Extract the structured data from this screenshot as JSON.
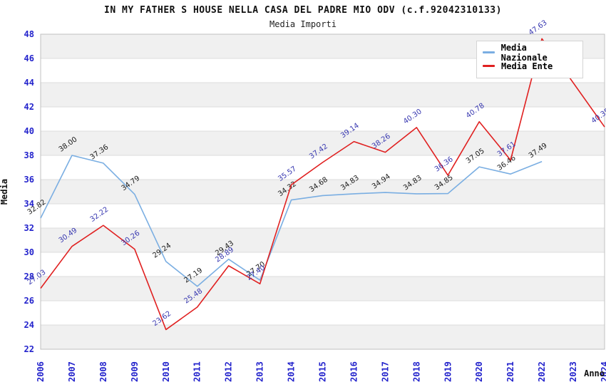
{
  "header": {
    "title": "IN MY FATHER S HOUSE NELLA CASA DEL PADRE MIO ODV (c.f.92042310133)",
    "subtitle": "Media Importi"
  },
  "legend": {
    "items": [
      {
        "label": "Media Nazionale",
        "color": "#7aaee2"
      },
      {
        "label": "Media Ente",
        "color": "#e02020"
      }
    ]
  },
  "colors": {
    "band": "#f0f0f0",
    "gridline": "#dcdcdc",
    "plot_border": "#c0c0c0",
    "tick_label": "#2323cc",
    "national_line": "#7aaee2",
    "ente_line": "#e02020",
    "national_label": "#1a1a1a",
    "ente_label": "#3737b0"
  },
  "chart_data": {
    "type": "line",
    "title": "IN MY FATHER S HOUSE NELLA CASA DEL PADRE MIO ODV (c.f.92042310133)",
    "subtitle": "Media Importi",
    "xlabel": "Anno",
    "ylabel": "Media",
    "ylim": [
      22,
      48
    ],
    "ytick_step": 2,
    "grid": "horizontal-bands",
    "legend_position": "top-right",
    "x": [
      2006,
      2007,
      2008,
      2009,
      2010,
      2011,
      2012,
      2013,
      2014,
      2015,
      2016,
      2017,
      2018,
      2019,
      2020,
      2021,
      2022,
      2023,
      2024
    ],
    "series": [
      {
        "name": "Media Nazionale",
        "color": "#7aaee2",
        "label_color": "#1a1a1a",
        "values": [
          32.82,
          38.0,
          37.36,
          34.79,
          29.24,
          27.19,
          29.43,
          27.7,
          34.32,
          34.68,
          34.83,
          34.94,
          34.83,
          34.85,
          37.05,
          36.46,
          37.49,
          null,
          null
        ]
      },
      {
        "name": "Media Ente",
        "color": "#e02020",
        "label_color": "#3737b0",
        "values": [
          27.03,
          30.49,
          32.22,
          30.26,
          23.62,
          25.48,
          28.89,
          27.4,
          35.57,
          37.42,
          39.14,
          38.26,
          40.3,
          36.36,
          40.78,
          37.61,
          47.63,
          null,
          40.35
        ]
      }
    ]
  }
}
